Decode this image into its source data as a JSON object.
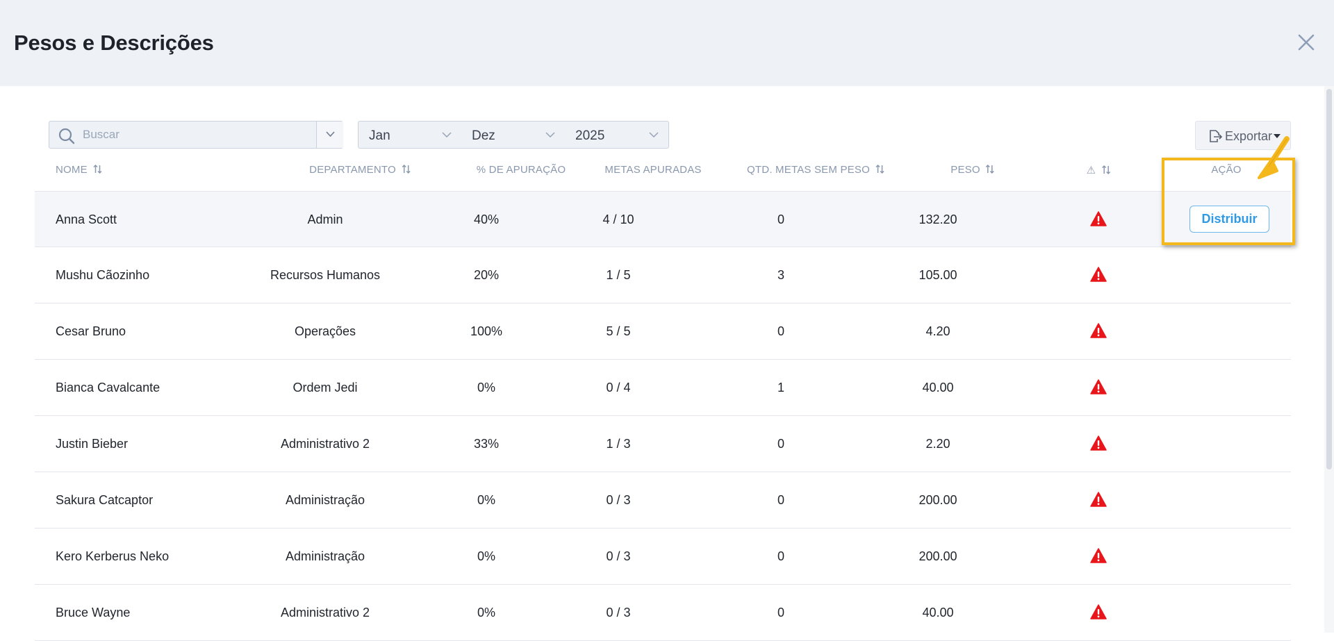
{
  "modal": {
    "title": "Pesos e Descrições"
  },
  "filters": {
    "search_placeholder": "Buscar",
    "month_start": "Jan",
    "month_end": "Dez",
    "year": "2025",
    "export_label": "Exportar"
  },
  "table": {
    "headers": {
      "nome": "NOME",
      "departamento": "DEPARTAMENTO",
      "apuracao": "% DE APURAÇÃO",
      "metas": "METAS APURADAS",
      "sem_peso": "QTD. METAS SEM PESO",
      "peso": "PESO",
      "alert_icon": "⚠",
      "acao": "AÇÃO"
    },
    "rows": [
      {
        "nome": "Anna Scott",
        "departamento": "Admin",
        "apuracao": "40%",
        "metas": "4 / 10",
        "sem_peso": "0",
        "peso": "132.20",
        "action": "Distribuir"
      },
      {
        "nome": "Mushu Cãozinho",
        "departamento": "Recursos Humanos",
        "apuracao": "20%",
        "metas": "1 / 5",
        "sem_peso": "3",
        "peso": "105.00"
      },
      {
        "nome": "Cesar Bruno",
        "departamento": "Operações",
        "apuracao": "100%",
        "metas": "5 / 5",
        "sem_peso": "0",
        "peso": "4.20"
      },
      {
        "nome": "Bianca Cavalcante",
        "departamento": "Ordem Jedi",
        "apuracao": "0%",
        "metas": "0 / 4",
        "sem_peso": "1",
        "peso": "40.00"
      },
      {
        "nome": "Justin Bieber",
        "departamento": "Administrativo 2",
        "apuracao": "33%",
        "metas": "1 / 3",
        "sem_peso": "0",
        "peso": "2.20"
      },
      {
        "nome": "Sakura Catcaptor",
        "departamento": "Administração",
        "apuracao": "0%",
        "metas": "0 / 3",
        "sem_peso": "0",
        "peso": "200.00"
      },
      {
        "nome": "Kero Kerberus Neko",
        "departamento": "Administração",
        "apuracao": "0%",
        "metas": "0 / 3",
        "sem_peso": "0",
        "peso": "200.00"
      },
      {
        "nome": "Bruce Wayne",
        "departamento": "Administrativo 2",
        "apuracao": "0%",
        "metas": "0 / 3",
        "sem_peso": "0",
        "peso": "40.00"
      }
    ]
  },
  "icons": {
    "warning": "warning-triangle-icon",
    "close": "close-icon",
    "search": "search-icon",
    "export": "export-file-icon",
    "sort": "sort-icon"
  },
  "colors": {
    "warning": "#e8161b",
    "accent": "#2f9ae3",
    "highlight": "#f4b71c"
  }
}
